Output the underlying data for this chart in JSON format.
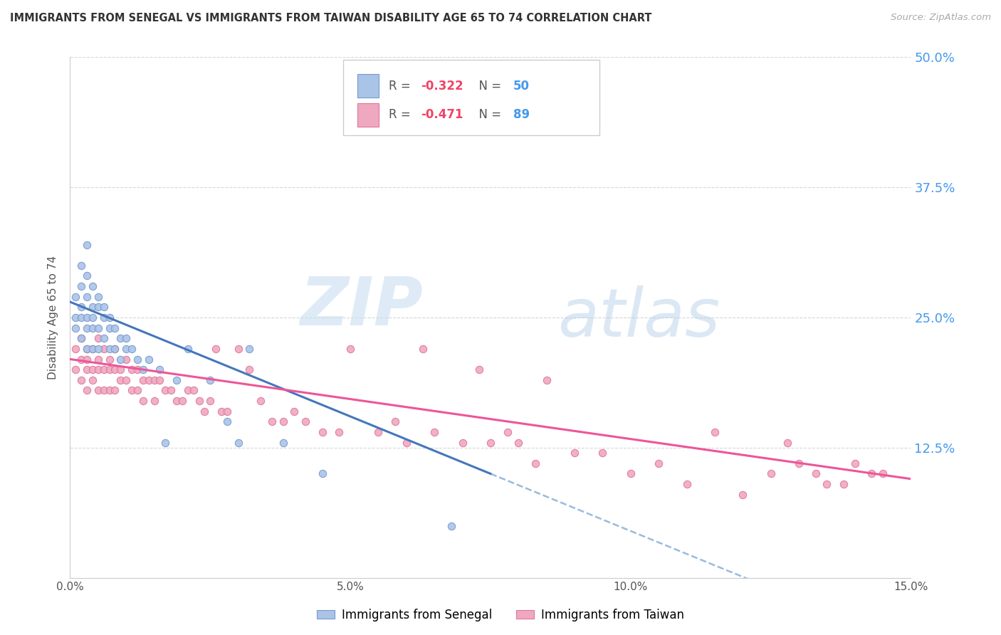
{
  "title": "IMMIGRANTS FROM SENEGAL VS IMMIGRANTS FROM TAIWAN DISABILITY AGE 65 TO 74 CORRELATION CHART",
  "source": "Source: ZipAtlas.com",
  "ylabel": "Disability Age 65 to 74",
  "xlim": [
    0.0,
    0.15
  ],
  "ylim": [
    0.0,
    0.5
  ],
  "series1_label": "Immigrants from Senegal",
  "series1_color": "#aac4e8",
  "series1_edge": "#7799cc",
  "series2_label": "Immigrants from Taiwan",
  "series2_color": "#f0a8c0",
  "series2_edge": "#dd7799",
  "regression_color1": "#4477bb",
  "regression_color2": "#ee5599",
  "dashed_color": "#99bbdd",
  "watermark_zip": "ZIP",
  "watermark_atlas": "atlas",
  "background_color": "#ffffff",
  "title_color": "#333333",
  "source_color": "#aaaaaa",
  "axis_color": "#4499ee",
  "R1_val": "-0.322",
  "N1_val": "50",
  "R2_val": "-0.471",
  "N2_val": "89",
  "senegal_x": [
    0.001,
    0.001,
    0.001,
    0.002,
    0.002,
    0.002,
    0.002,
    0.002,
    0.003,
    0.003,
    0.003,
    0.003,
    0.003,
    0.003,
    0.004,
    0.004,
    0.004,
    0.004,
    0.004,
    0.005,
    0.005,
    0.005,
    0.005,
    0.006,
    0.006,
    0.006,
    0.007,
    0.007,
    0.007,
    0.008,
    0.008,
    0.009,
    0.009,
    0.01,
    0.01,
    0.011,
    0.012,
    0.013,
    0.014,
    0.016,
    0.017,
    0.019,
    0.021,
    0.025,
    0.028,
    0.03,
    0.032,
    0.038,
    0.045,
    0.068
  ],
  "senegal_y": [
    0.27,
    0.25,
    0.24,
    0.3,
    0.28,
    0.26,
    0.25,
    0.23,
    0.32,
    0.29,
    0.27,
    0.25,
    0.24,
    0.22,
    0.28,
    0.26,
    0.25,
    0.24,
    0.22,
    0.27,
    0.26,
    0.24,
    0.22,
    0.26,
    0.25,
    0.23,
    0.25,
    0.24,
    0.22,
    0.24,
    0.22,
    0.23,
    0.21,
    0.23,
    0.22,
    0.22,
    0.21,
    0.2,
    0.21,
    0.2,
    0.13,
    0.19,
    0.22,
    0.19,
    0.15,
    0.13,
    0.22,
    0.13,
    0.1,
    0.05
  ],
  "taiwan_x": [
    0.001,
    0.001,
    0.002,
    0.002,
    0.002,
    0.003,
    0.003,
    0.003,
    0.003,
    0.004,
    0.004,
    0.004,
    0.005,
    0.005,
    0.005,
    0.005,
    0.006,
    0.006,
    0.006,
    0.007,
    0.007,
    0.007,
    0.008,
    0.008,
    0.008,
    0.009,
    0.009,
    0.01,
    0.01,
    0.011,
    0.011,
    0.012,
    0.012,
    0.013,
    0.013,
    0.014,
    0.015,
    0.015,
    0.016,
    0.017,
    0.018,
    0.019,
    0.02,
    0.021,
    0.022,
    0.023,
    0.024,
    0.025,
    0.026,
    0.027,
    0.028,
    0.03,
    0.032,
    0.034,
    0.036,
    0.038,
    0.04,
    0.042,
    0.045,
    0.048,
    0.05,
    0.055,
    0.058,
    0.06,
    0.063,
    0.065,
    0.07,
    0.073,
    0.075,
    0.078,
    0.08,
    0.083,
    0.085,
    0.09,
    0.095,
    0.1,
    0.105,
    0.11,
    0.115,
    0.12,
    0.125,
    0.128,
    0.13,
    0.133,
    0.135,
    0.138,
    0.14,
    0.143,
    0.145
  ],
  "taiwan_y": [
    0.22,
    0.2,
    0.23,
    0.21,
    0.19,
    0.22,
    0.21,
    0.2,
    0.18,
    0.22,
    0.2,
    0.19,
    0.23,
    0.21,
    0.2,
    0.18,
    0.22,
    0.2,
    0.18,
    0.21,
    0.2,
    0.18,
    0.22,
    0.2,
    0.18,
    0.2,
    0.19,
    0.21,
    0.19,
    0.2,
    0.18,
    0.2,
    0.18,
    0.19,
    0.17,
    0.19,
    0.19,
    0.17,
    0.19,
    0.18,
    0.18,
    0.17,
    0.17,
    0.18,
    0.18,
    0.17,
    0.16,
    0.17,
    0.22,
    0.16,
    0.16,
    0.22,
    0.2,
    0.17,
    0.15,
    0.15,
    0.16,
    0.15,
    0.14,
    0.14,
    0.22,
    0.14,
    0.15,
    0.13,
    0.22,
    0.14,
    0.13,
    0.2,
    0.13,
    0.14,
    0.13,
    0.11,
    0.19,
    0.12,
    0.12,
    0.1,
    0.11,
    0.09,
    0.14,
    0.08,
    0.1,
    0.13,
    0.11,
    0.1,
    0.09,
    0.09,
    0.11,
    0.1,
    0.1
  ]
}
